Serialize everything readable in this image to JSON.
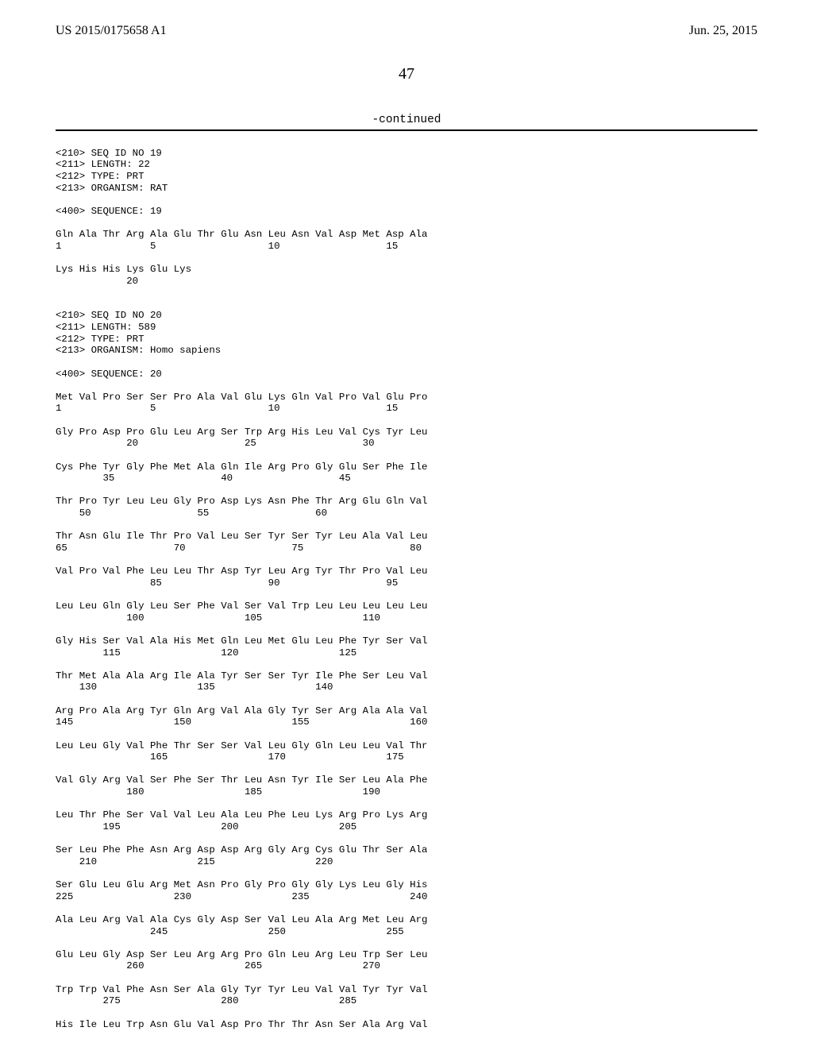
{
  "header": {
    "pub_no": "US 2015/0175658 A1",
    "pub_date": "Jun. 25, 2015"
  },
  "page_number": "47",
  "continued_label": "-continued",
  "seq19": {
    "meta_line1": "<210> SEQ ID NO 19",
    "meta_line2": "<211> LENGTH: 22",
    "meta_line3": "<212> TYPE: PRT",
    "meta_line4": "<213> ORGANISM: RAT",
    "seq_label": "<400> SEQUENCE: 19",
    "row1": "Gln Ala Thr Arg Ala Glu Thr Glu Asn Leu Asn Val Asp Met Asp Ala",
    "row1n": "1               5                   10                  15",
    "row2": "Lys His His Lys Glu Lys",
    "row2n": "            20"
  },
  "seq20": {
    "meta_line1": "<210> SEQ ID NO 20",
    "meta_line2": "<211> LENGTH: 589",
    "meta_line3": "<212> TYPE: PRT",
    "meta_line4": "<213> ORGANISM: Homo sapiens",
    "seq_label": "<400> SEQUENCE: 20",
    "r1": "Met Val Pro Ser Ser Pro Ala Val Glu Lys Gln Val Pro Val Glu Pro",
    "r1n": "1               5                   10                  15",
    "r2": "Gly Pro Asp Pro Glu Leu Arg Ser Trp Arg His Leu Val Cys Tyr Leu",
    "r2n": "            20                  25                  30",
    "r3": "Cys Phe Tyr Gly Phe Met Ala Gln Ile Arg Pro Gly Glu Ser Phe Ile",
    "r3n": "        35                  40                  45",
    "r4": "Thr Pro Tyr Leu Leu Gly Pro Asp Lys Asn Phe Thr Arg Glu Gln Val",
    "r4n": "    50                  55                  60",
    "r5": "Thr Asn Glu Ile Thr Pro Val Leu Ser Tyr Ser Tyr Leu Ala Val Leu",
    "r5n": "65                  70                  75                  80",
    "r6": "Val Pro Val Phe Leu Leu Thr Asp Tyr Leu Arg Tyr Thr Pro Val Leu",
    "r6n": "                85                  90                  95",
    "r7": "Leu Leu Gln Gly Leu Ser Phe Val Ser Val Trp Leu Leu Leu Leu Leu",
    "r7n": "            100                 105                 110",
    "r8": "Gly His Ser Val Ala His Met Gln Leu Met Glu Leu Phe Tyr Ser Val",
    "r8n": "        115                 120                 125",
    "r9": "Thr Met Ala Ala Arg Ile Ala Tyr Ser Ser Tyr Ile Phe Ser Leu Val",
    "r9n": "    130                 135                 140",
    "r10": "Arg Pro Ala Arg Tyr Gln Arg Val Ala Gly Tyr Ser Arg Ala Ala Val",
    "r10n": "145                 150                 155                 160",
    "r11": "Leu Leu Gly Val Phe Thr Ser Ser Val Leu Gly Gln Leu Leu Val Thr",
    "r11n": "                165                 170                 175",
    "r12": "Val Gly Arg Val Ser Phe Ser Thr Leu Asn Tyr Ile Ser Leu Ala Phe",
    "r12n": "            180                 185                 190",
    "r13": "Leu Thr Phe Ser Val Val Leu Ala Leu Phe Leu Lys Arg Pro Lys Arg",
    "r13n": "        195                 200                 205",
    "r14": "Ser Leu Phe Phe Asn Arg Asp Asp Arg Gly Arg Cys Glu Thr Ser Ala",
    "r14n": "    210                 215                 220",
    "r15": "Ser Glu Leu Glu Arg Met Asn Pro Gly Pro Gly Gly Lys Leu Gly His",
    "r15n": "225                 230                 235                 240",
    "r16": "Ala Leu Arg Val Ala Cys Gly Asp Ser Val Leu Ala Arg Met Leu Arg",
    "r16n": "                245                 250                 255",
    "r17": "Glu Leu Gly Asp Ser Leu Arg Arg Pro Gln Leu Arg Leu Trp Ser Leu",
    "r17n": "            260                 265                 270",
    "r18": "Trp Trp Val Phe Asn Ser Ala Gly Tyr Tyr Leu Val Val Tyr Tyr Val",
    "r18n": "        275                 280                 285",
    "r19": "His Ile Leu Trp Asn Glu Val Asp Pro Thr Thr Asn Ser Ala Arg Val"
  }
}
